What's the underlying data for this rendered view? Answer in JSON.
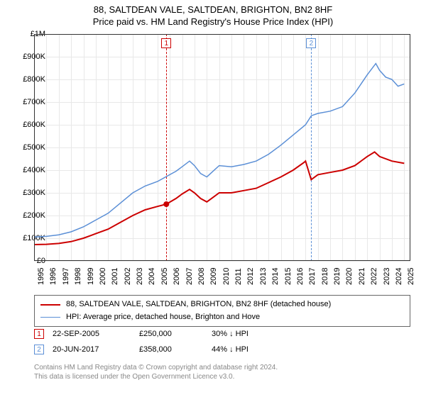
{
  "header": {
    "title": "88, SALTDEAN VALE, SALTDEAN, BRIGHTON, BN2 8HF",
    "subtitle": "Price paid vs. HM Land Registry's House Price Index (HPI)"
  },
  "chart": {
    "type": "line",
    "background_color": "#ffffff",
    "grid_color": "#e8e8e8",
    "axis_color": "#333333",
    "xlim": [
      1995,
      2025.5
    ],
    "ylim": [
      0,
      1000000
    ],
    "ytick_step": 100000,
    "yticks": [
      "£0",
      "£100K",
      "£200K",
      "£300K",
      "£400K",
      "£500K",
      "£600K",
      "£700K",
      "£800K",
      "£900K",
      "£1M"
    ],
    "xticks": [
      "1995",
      "1996",
      "1997",
      "1998",
      "1999",
      "2000",
      "2001",
      "2002",
      "2003",
      "2004",
      "2005",
      "2006",
      "2007",
      "2008",
      "2009",
      "2010",
      "2011",
      "2012",
      "2013",
      "2014",
      "2015",
      "2016",
      "2017",
      "2018",
      "2019",
      "2020",
      "2021",
      "2022",
      "2023",
      "2024",
      "2025"
    ],
    "series": [
      {
        "id": "property",
        "label": "88, SALTDEAN VALE, SALTDEAN, BRIGHTON, BN2 8HF (detached house)",
        "color": "#cc0000",
        "line_width": 2,
        "data": [
          [
            1995.0,
            72000
          ],
          [
            1996.0,
            73000
          ],
          [
            1997.0,
            77000
          ],
          [
            1998.0,
            85000
          ],
          [
            1999.0,
            100000
          ],
          [
            2000.0,
            120000
          ],
          [
            2001.0,
            140000
          ],
          [
            2002.0,
            170000
          ],
          [
            2003.0,
            200000
          ],
          [
            2004.0,
            225000
          ],
          [
            2005.0,
            240000
          ],
          [
            2005.72,
            250000
          ],
          [
            2006.5,
            275000
          ],
          [
            2007.0,
            295000
          ],
          [
            2007.6,
            315000
          ],
          [
            2008.0,
            300000
          ],
          [
            2008.5,
            275000
          ],
          [
            2009.0,
            260000
          ],
          [
            2009.5,
            280000
          ],
          [
            2010.0,
            300000
          ],
          [
            2011.0,
            300000
          ],
          [
            2012.0,
            310000
          ],
          [
            2013.0,
            320000
          ],
          [
            2014.0,
            345000
          ],
          [
            2015.0,
            370000
          ],
          [
            2016.0,
            400000
          ],
          [
            2016.9,
            435000
          ],
          [
            2017.0,
            440000
          ],
          [
            2017.46,
            358000
          ],
          [
            2018.0,
            380000
          ],
          [
            2019.0,
            390000
          ],
          [
            2020.0,
            400000
          ],
          [
            2021.0,
            420000
          ],
          [
            2022.0,
            460000
          ],
          [
            2022.6,
            480000
          ],
          [
            2023.0,
            460000
          ],
          [
            2024.0,
            440000
          ],
          [
            2025.0,
            430000
          ]
        ],
        "marker_point": [
          2005.72,
          250000
        ]
      },
      {
        "id": "hpi",
        "label": "HPI: Average price, detached house, Brighton and Hove",
        "color": "#5b8fd6",
        "line_width": 1.5,
        "data": [
          [
            1995.0,
            105000
          ],
          [
            1996.0,
            108000
          ],
          [
            1997.0,
            115000
          ],
          [
            1998.0,
            128000
          ],
          [
            1999.0,
            150000
          ],
          [
            2000.0,
            180000
          ],
          [
            2001.0,
            210000
          ],
          [
            2002.0,
            255000
          ],
          [
            2003.0,
            300000
          ],
          [
            2004.0,
            330000
          ],
          [
            2005.0,
            350000
          ],
          [
            2006.0,
            380000
          ],
          [
            2006.5,
            395000
          ],
          [
            2007.0,
            415000
          ],
          [
            2007.6,
            440000
          ],
          [
            2008.0,
            420000
          ],
          [
            2008.5,
            385000
          ],
          [
            2009.0,
            370000
          ],
          [
            2009.5,
            395000
          ],
          [
            2010.0,
            420000
          ],
          [
            2011.0,
            415000
          ],
          [
            2012.0,
            425000
          ],
          [
            2013.0,
            440000
          ],
          [
            2014.0,
            470000
          ],
          [
            2015.0,
            510000
          ],
          [
            2016.0,
            555000
          ],
          [
            2017.0,
            600000
          ],
          [
            2017.47,
            640000
          ],
          [
            2018.0,
            650000
          ],
          [
            2019.0,
            660000
          ],
          [
            2020.0,
            680000
          ],
          [
            2021.0,
            740000
          ],
          [
            2022.0,
            820000
          ],
          [
            2022.7,
            870000
          ],
          [
            2023.0,
            840000
          ],
          [
            2023.5,
            810000
          ],
          [
            2024.0,
            800000
          ],
          [
            2024.5,
            770000
          ],
          [
            2025.0,
            780000
          ]
        ]
      }
    ],
    "event_markers": [
      {
        "n": "1",
        "x": 2005.72,
        "color": "#cc0000"
      },
      {
        "n": "2",
        "x": 2017.47,
        "color": "#5b8fd6"
      }
    ]
  },
  "legend": {
    "items": [
      {
        "color": "#cc0000",
        "width": 2,
        "label": "88, SALTDEAN VALE, SALTDEAN, BRIGHTON, BN2 8HF (detached house)"
      },
      {
        "color": "#5b8fd6",
        "width": 1.5,
        "label": "HPI: Average price, detached house, Brighton and Hove"
      }
    ]
  },
  "transactions": [
    {
      "n": "1",
      "color": "#cc0000",
      "date": "22-SEP-2005",
      "price": "£250,000",
      "diff": "30%  ↓  HPI"
    },
    {
      "n": "2",
      "color": "#5b8fd6",
      "date": "20-JUN-2017",
      "price": "£358,000",
      "diff": "44%  ↓  HPI"
    }
  ],
  "attribution": {
    "line1": "Contains HM Land Registry data © Crown copyright and database right 2024.",
    "line2": "This data is licensed under the Open Government Licence v3.0."
  },
  "fonts": {
    "title_size": 13,
    "tick_size": 11,
    "legend_size": 11,
    "attribution_size": 10
  }
}
